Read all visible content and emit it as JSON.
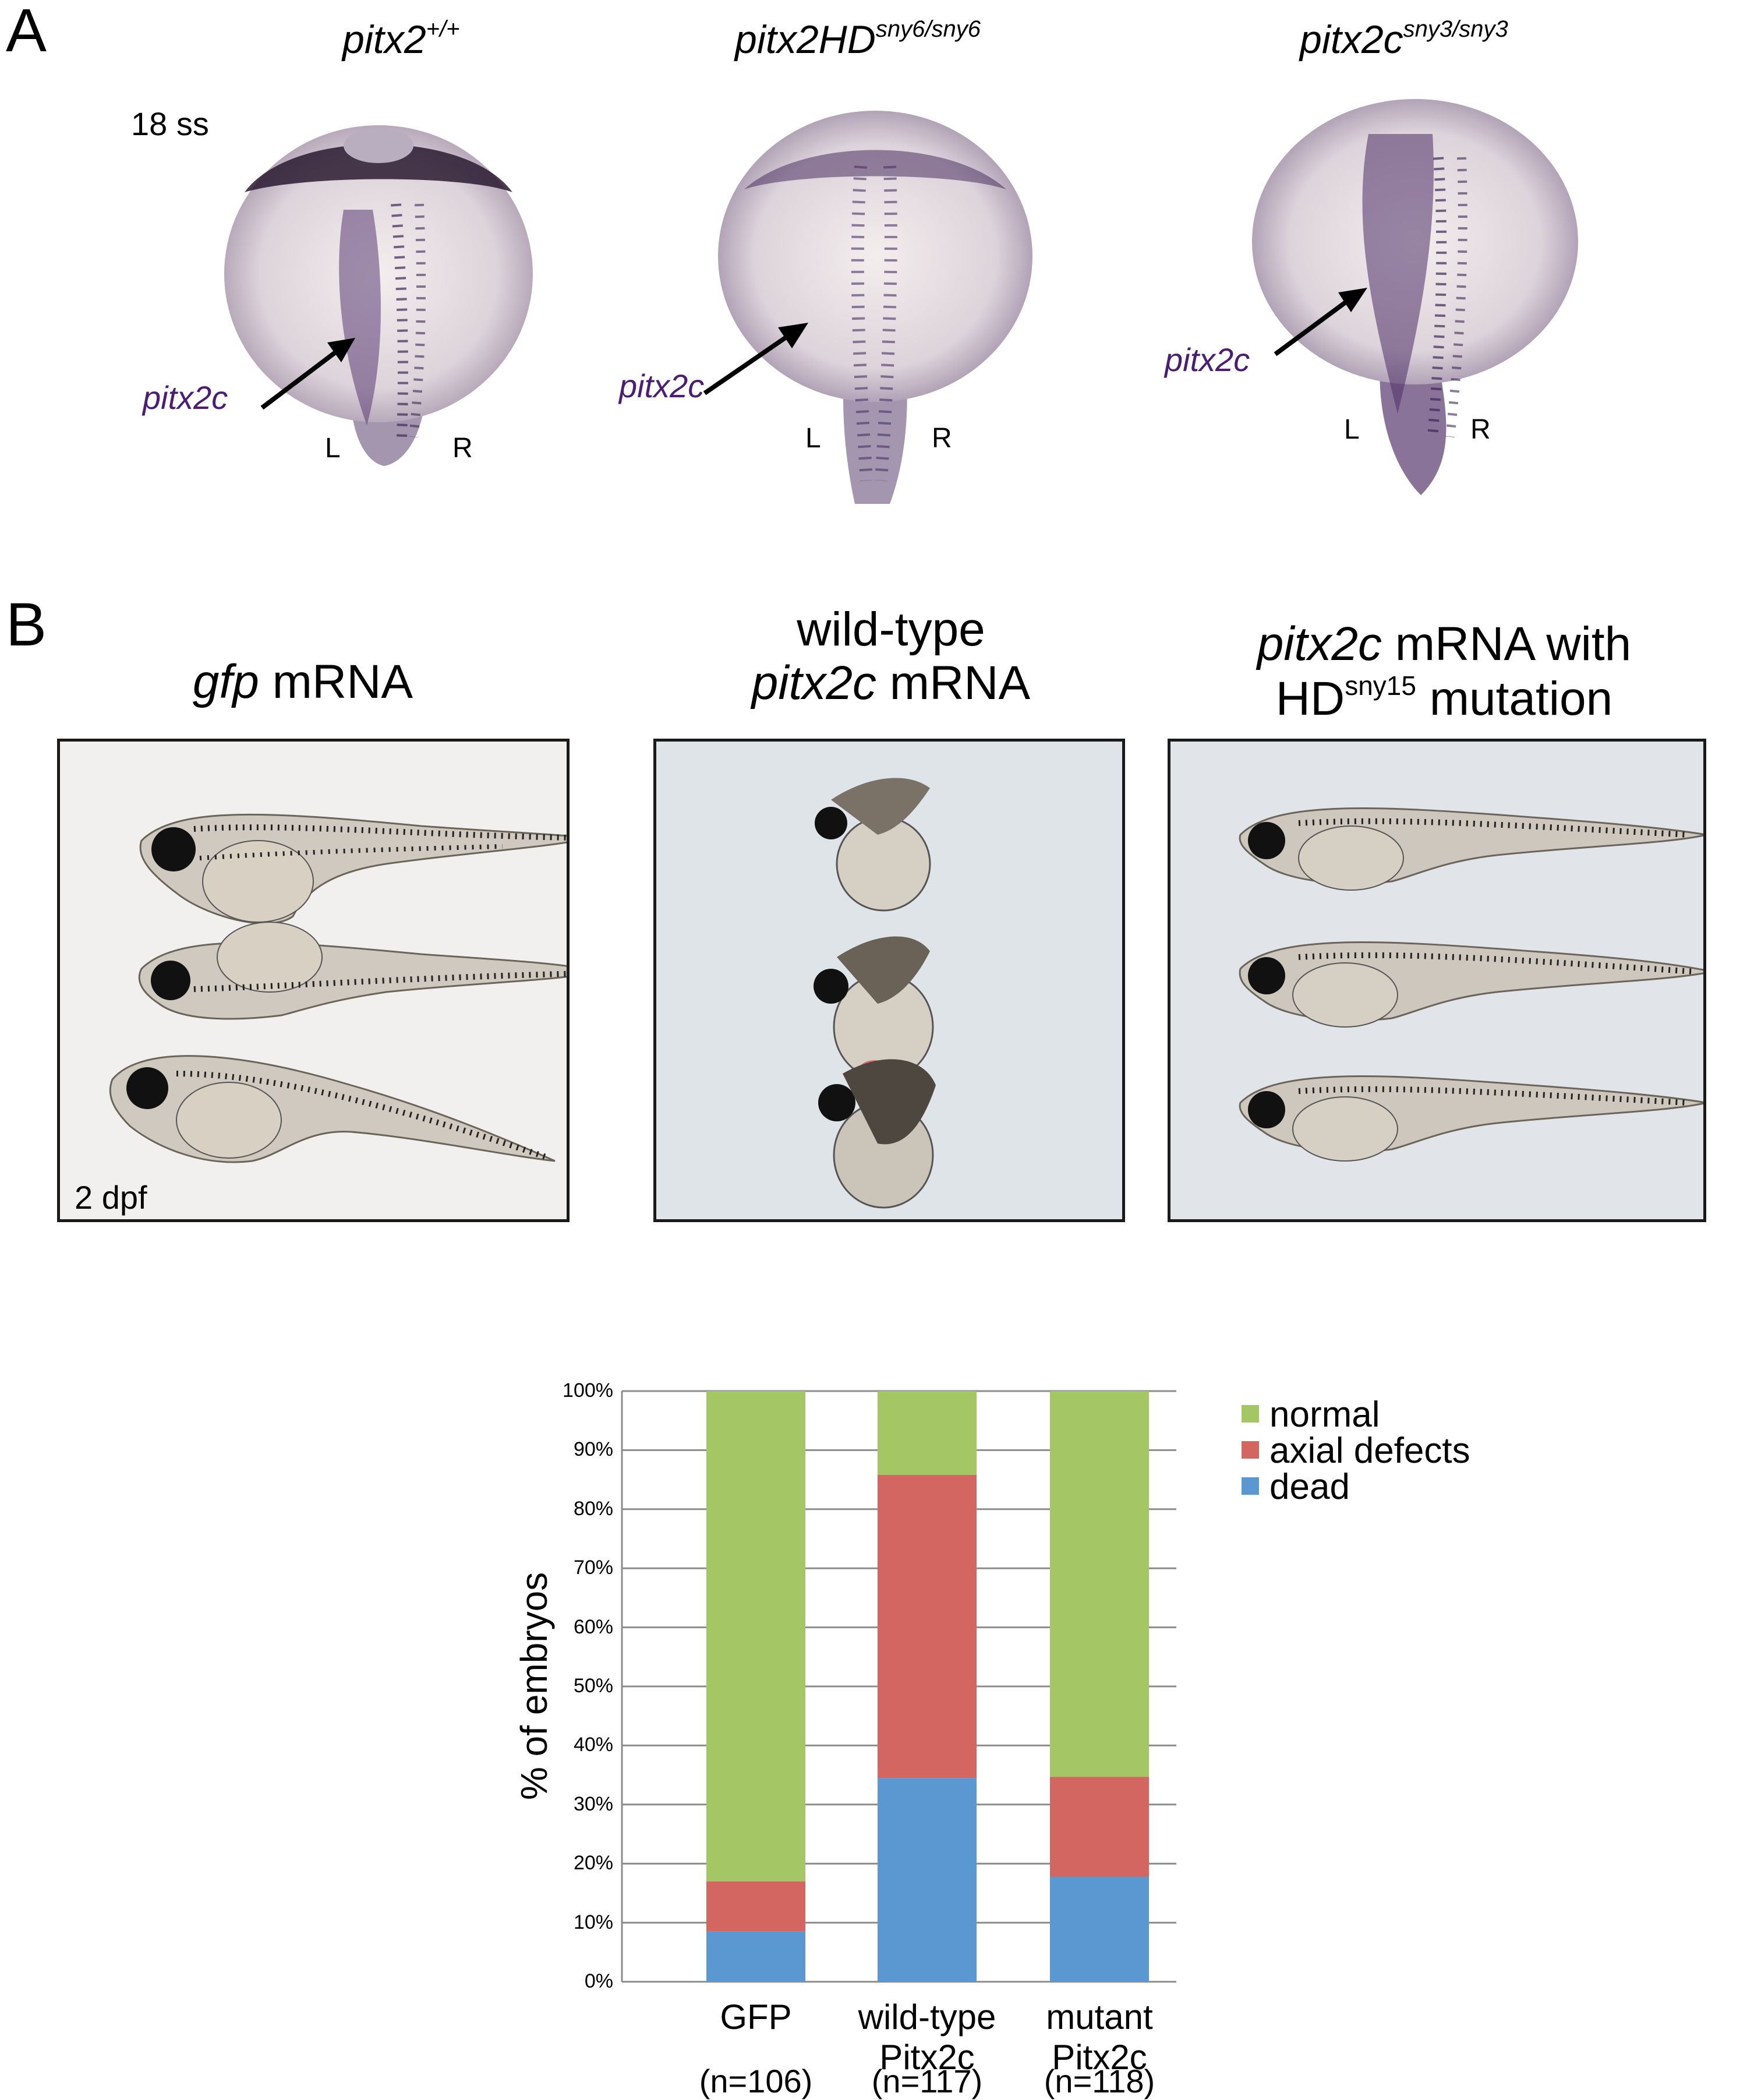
{
  "panelA": {
    "letter": "A",
    "stage": "18 ss",
    "columns": [
      {
        "genotype_base": "pitx2",
        "genotype_sup": "+/+",
        "marker": "pitx2c",
        "left": "L",
        "right": "R"
      },
      {
        "genotype_base": "pitx2HD",
        "genotype_sup": "sny6/sny6",
        "marker": "pitx2c",
        "left": "L",
        "right": "R"
      },
      {
        "genotype_base": "pitx2c",
        "genotype_sup": "sny3/sny3",
        "marker": "pitx2c",
        "left": "L",
        "right": "R"
      }
    ]
  },
  "panelB": {
    "letter": "B",
    "stage": "2 dpf",
    "titles": {
      "t1_italic": "gfp",
      "t1_rest": " mRNA",
      "t2_line1": "wild-type",
      "t2_italic": "pitx2c",
      "t2_rest": " mRNA",
      "t3_italic": "pitx2c",
      "t3_rest": " mRNA with",
      "t3_base": "HD",
      "t3_sup": "sny15",
      "t3_tail": " mutation"
    }
  },
  "chart_data": {
    "type": "bar",
    "stacked": true,
    "categories": [
      "GFP",
      "wild-type Pitx2c",
      "mutant Pitx2c"
    ],
    "category_lines": [
      [
        "GFP"
      ],
      [
        "wild-type",
        "Pitx2c"
      ],
      [
        "mutant",
        "Pitx2c"
      ]
    ],
    "n_labels": [
      "(n=106)",
      "(n=117)",
      "(n=118)"
    ],
    "ylabel": "% of embryos",
    "ylim": [
      0,
      100
    ],
    "yticks": [
      "0%",
      "10%",
      "20%",
      "30%",
      "40%",
      "50%",
      "60%",
      "70%",
      "80%",
      "90%",
      "100%"
    ],
    "grid": true,
    "legend_position": "right",
    "series": [
      {
        "name": "dead",
        "color": "#5b97d0",
        "values": [
          8.5,
          34.5,
          17.8
        ]
      },
      {
        "name": "axial defects",
        "color": "#d36660",
        "values": [
          8.5,
          51.3,
          16.9
        ]
      },
      {
        "name": "normal",
        "color": "#a4c664",
        "values": [
          83,
          14.2,
          65.3
        ]
      }
    ],
    "legend_order": [
      "normal",
      "axial defects",
      "dead"
    ]
  }
}
